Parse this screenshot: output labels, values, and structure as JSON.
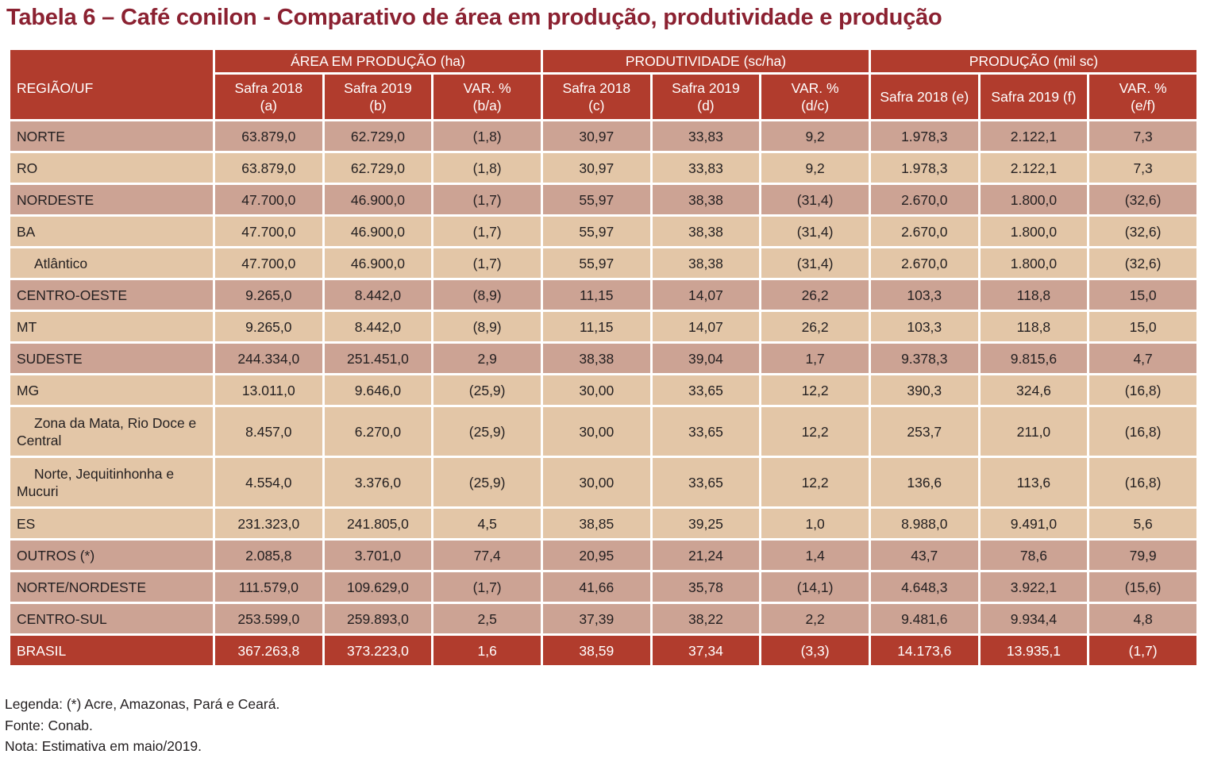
{
  "title": "Tabela 6 – Café conilon - Comparativo de área em produção, produtividade e produção",
  "header": {
    "region": "REGIÃO/UF",
    "groups": [
      "ÁREA EM PRODUÇÃO (ha)",
      "PRODUTIVIDADE (sc/ha)",
      "PRODUÇÃO  (mil sc)"
    ],
    "subcols": [
      [
        "Safra 2018",
        "(a)"
      ],
      [
        "Safra 2019",
        "(b)"
      ],
      [
        "VAR. %",
        "(b/a)"
      ],
      [
        "Safra 2018",
        "(c)"
      ],
      [
        "Safra 2019",
        "(d)"
      ],
      [
        "VAR. %",
        "(d/c)"
      ],
      [
        "Safra 2018 (e)",
        ""
      ],
      [
        "Safra 2019 (f)",
        ""
      ],
      [
        "VAR. %",
        "(e/f)"
      ]
    ]
  },
  "rows": [
    {
      "name": "NORTE",
      "indent": 0,
      "style": "dark",
      "values": [
        "63.879,0",
        "62.729,0",
        "(1,8)",
        "30,97",
        "33,83",
        "9,2",
        "1.978,3",
        "2.122,1",
        "7,3"
      ]
    },
    {
      "name": "RO",
      "indent": 0,
      "style": "light",
      "values": [
        "63.879,0",
        "62.729,0",
        "(1,8)",
        "30,97",
        "33,83",
        "9,2",
        "1.978,3",
        "2.122,1",
        "7,3"
      ]
    },
    {
      "name": "NORDESTE",
      "indent": 0,
      "style": "dark",
      "values": [
        "47.700,0",
        "46.900,0",
        "(1,7)",
        "55,97",
        "38,38",
        "(31,4)",
        "2.670,0",
        "1.800,0",
        "(32,6)"
      ]
    },
    {
      "name": "BA",
      "indent": 0,
      "style": "light",
      "values": [
        "47.700,0",
        "46.900,0",
        "(1,7)",
        "55,97",
        "38,38",
        "(31,4)",
        "2.670,0",
        "1.800,0",
        "(32,6)"
      ]
    },
    {
      "name": "Atlântico",
      "indent": 1,
      "style": "light",
      "values": [
        "47.700,0",
        "46.900,0",
        "(1,7)",
        "55,97",
        "38,38",
        "(31,4)",
        "2.670,0",
        "1.800,0",
        "(32,6)"
      ]
    },
    {
      "name": "CENTRO-OESTE",
      "indent": 0,
      "style": "dark",
      "values": [
        "9.265,0",
        "8.442,0",
        "(8,9)",
        "11,15",
        "14,07",
        "26,2",
        "103,3",
        "118,8",
        "15,0"
      ]
    },
    {
      "name": "MT",
      "indent": 0,
      "style": "light",
      "values": [
        "9.265,0",
        "8.442,0",
        "(8,9)",
        "11,15",
        "14,07",
        "26,2",
        "103,3",
        "118,8",
        "15,0"
      ]
    },
    {
      "name": "SUDESTE",
      "indent": 0,
      "style": "dark",
      "values": [
        "244.334,0",
        "251.451,0",
        "2,9",
        "38,38",
        "39,04",
        "1,7",
        "9.378,3",
        "9.815,6",
        "4,7"
      ]
    },
    {
      "name": "MG",
      "indent": 0,
      "style": "light",
      "values": [
        "13.011,0",
        "9.646,0",
        "(25,9)",
        "30,00",
        "33,65",
        "12,2",
        "390,3",
        "324,6",
        "(16,8)"
      ]
    },
    {
      "name": "Zona da Mata, Rio Doce e Central",
      "indent": 2,
      "style": "light",
      "tall": true,
      "values": [
        "8.457,0",
        "6.270,0",
        "(25,9)",
        "30,00",
        "33,65",
        "12,2",
        "253,7",
        "211,0",
        "(16,8)"
      ]
    },
    {
      "name": "Norte, Jequitinhonha e Mucuri",
      "indent": 2,
      "style": "light",
      "tall": true,
      "values": [
        "4.554,0",
        "3.376,0",
        "(25,9)",
        "30,00",
        "33,65",
        "12,2",
        "136,6",
        "113,6",
        "(16,8)"
      ]
    },
    {
      "name": "ES",
      "indent": 0,
      "style": "light",
      "values": [
        "231.323,0",
        "241.805,0",
        "4,5",
        "38,85",
        "39,25",
        "1,0",
        "8.988,0",
        "9.491,0",
        "5,6"
      ]
    },
    {
      "name": "OUTROS (*)",
      "indent": 0,
      "style": "dark",
      "values": [
        "2.085,8",
        "3.701,0",
        "77,4",
        "20,95",
        "21,24",
        "1,4",
        "43,7",
        "78,6",
        "79,9"
      ]
    },
    {
      "name": "NORTE/NORDESTE",
      "indent": 0,
      "style": "dark",
      "values": [
        "111.579,0",
        "109.629,0",
        "(1,7)",
        "41,66",
        "35,78",
        "(14,1)",
        "4.648,3",
        "3.922,1",
        "(15,6)"
      ]
    },
    {
      "name": "CENTRO-SUL",
      "indent": 0,
      "style": "dark",
      "values": [
        "253.599,0",
        "259.893,0",
        "2,5",
        "37,39",
        "38,22",
        "2,2",
        "9.481,6",
        "9.934,4",
        "4,8"
      ]
    },
    {
      "name": "BRASIL",
      "indent": 0,
      "style": "total",
      "values": [
        "367.263,8",
        "373.223,0",
        "1,6",
        "38,59",
        "37,34",
        "(3,3)",
        "14.173,6",
        "13.935,1",
        "(1,7)"
      ]
    }
  ],
  "notes": [
    "Legenda: (*) Acre, Amazonas, Pará e Ceará.",
    "Fonte: Conab.",
    "Nota: Estimativa em maio/2019."
  ]
}
